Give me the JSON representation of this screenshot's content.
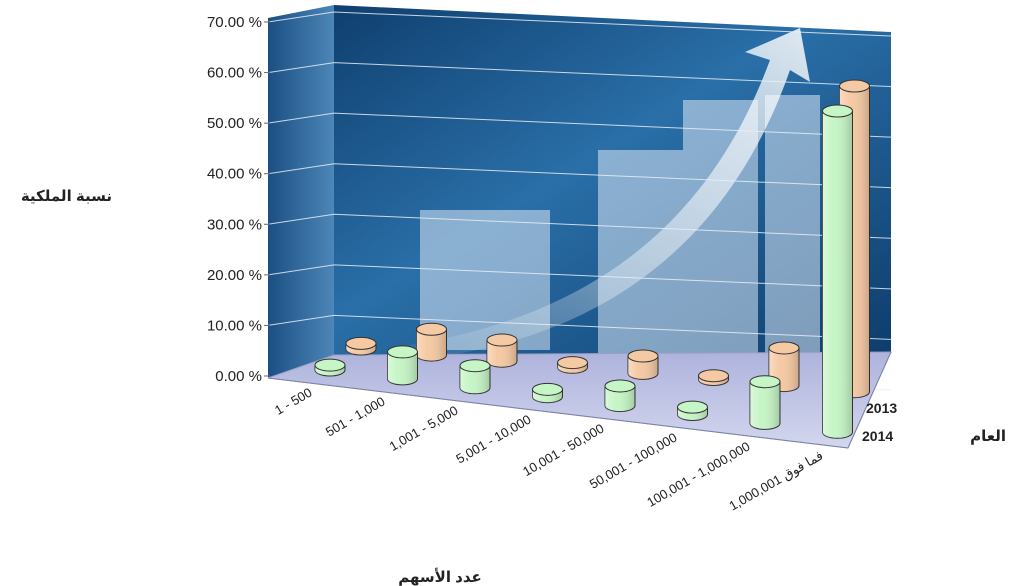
{
  "chart_data": {
    "type": "bar",
    "style": "3d-cylinder",
    "ylabel": "نسبة الملكية",
    "xlabel": "عدد الأسهم",
    "zlabel": "العام",
    "ylim": [
      0,
      70
    ],
    "yticks": [
      "0.00 %",
      "10.00 %",
      "20.00 %",
      "30.00 %",
      "40.00 %",
      "50.00 %",
      "60.00 %",
      "70.00 %"
    ],
    "categories": [
      "1 - 500",
      "501 - 1,000",
      "1,001 - 5,000",
      "5,001 - 10,000",
      "10,001 - 50,000",
      "50,001 - 100,000",
      "100,001 - 1,000,000",
      "1,000,001 فما فوق"
    ],
    "series": [
      {
        "name": "2014",
        "color": "#c6f5c6",
        "values": [
          1.0,
          5.5,
          4.5,
          1.5,
          4.0,
          1.5,
          8.5,
          65.5
        ]
      },
      {
        "name": "2013",
        "color": "#f5c9a3",
        "values": [
          1.2,
          5.5,
          4.5,
          1.0,
          3.7,
          0.8,
          8.0,
          65.0
        ]
      }
    ],
    "grid": true,
    "background": "blue business graph image"
  }
}
